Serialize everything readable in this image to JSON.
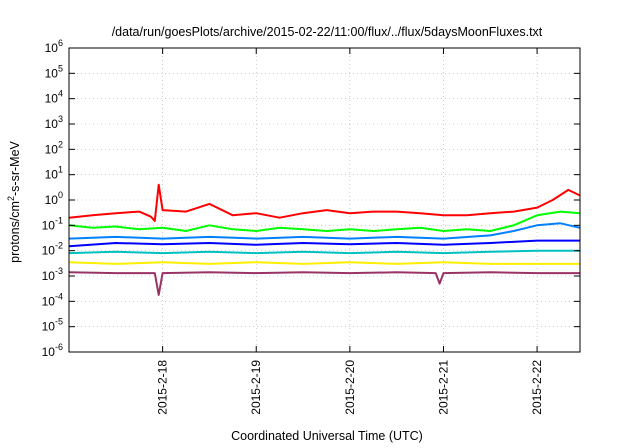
{
  "chart_data": {
    "type": "line",
    "title": "/data/run/goesPlots/archive/2015-02-22/11:00/flux/../flux/5daysMoonFluxes.txt",
    "xlabel": "Coordinated Universal Time (UTC)",
    "ylabel": {
      "prefix": "protons/cm",
      "sup": "2",
      "suffix": "-s-sr-MeV"
    },
    "x_scale": "time",
    "xlim": [
      "2015-02-17T00:00",
      "2015-02-22T11:00"
    ],
    "x_ticks": [
      {
        "at": "2015-02-18T00:00",
        "label": "2015-2-18"
      },
      {
        "at": "2015-02-19T00:00",
        "label": "2015-2-19"
      },
      {
        "at": "2015-02-20T00:00",
        "label": "2015-2-20"
      },
      {
        "at": "2015-02-21T00:00",
        "label": "2015-2-21"
      },
      {
        "at": "2015-02-22T00:00",
        "label": "2015-2-22"
      }
    ],
    "y_scale": "log",
    "ylim": [
      1e-06,
      1000000.0
    ],
    "y_ticks": [
      {
        "value": 1e-06,
        "base": "10",
        "exp": "-6"
      },
      {
        "value": 1e-05,
        "base": "10",
        "exp": "-5"
      },
      {
        "value": 0.0001,
        "base": "10",
        "exp": "-4"
      },
      {
        "value": 0.001,
        "base": "10",
        "exp": "-3"
      },
      {
        "value": 0.01,
        "base": "10",
        "exp": "-2"
      },
      {
        "value": 0.1,
        "base": "10",
        "exp": "-1"
      },
      {
        "value": 1,
        "base": "10",
        "exp": "0"
      },
      {
        "value": 10.0,
        "base": "10",
        "exp": "1"
      },
      {
        "value": 100.0,
        "base": "10",
        "exp": "2"
      },
      {
        "value": 1000.0,
        "base": "10",
        "exp": "3"
      },
      {
        "value": 10000.0,
        "base": "10",
        "exp": "4"
      },
      {
        "value": 100000.0,
        "base": "10",
        "exp": "5"
      },
      {
        "value": 1000000.0,
        "base": "10",
        "exp": "6"
      }
    ],
    "grid": true,
    "legend": "none",
    "series": [
      {
        "color": "#ff0000",
        "x": [
          "2015-02-17T00:00",
          "2015-02-17T06:00",
          "2015-02-17T12:00",
          "2015-02-17T18:00",
          "2015-02-17T21:00",
          "2015-02-17T22:00",
          "2015-02-17T23:00",
          "2015-02-18T00:00",
          "2015-02-18T06:00",
          "2015-02-18T12:00",
          "2015-02-18T18:00",
          "2015-02-19T00:00",
          "2015-02-19T06:00",
          "2015-02-19T12:00",
          "2015-02-19T18:00",
          "2015-02-20T00:00",
          "2015-02-20T06:00",
          "2015-02-20T12:00",
          "2015-02-20T18:00",
          "2015-02-21T00:00",
          "2015-02-21T06:00",
          "2015-02-21T12:00",
          "2015-02-21T18:00",
          "2015-02-22T00:00",
          "2015-02-22T04:00",
          "2015-02-22T08:00",
          "2015-02-22T11:00"
        ],
        "y": [
          0.2,
          0.25,
          0.3,
          0.35,
          0.22,
          0.15,
          4.0,
          0.4,
          0.35,
          0.7,
          0.25,
          0.3,
          0.2,
          0.3,
          0.4,
          0.3,
          0.35,
          0.35,
          0.3,
          0.25,
          0.25,
          0.3,
          0.35,
          0.5,
          1.0,
          2.5,
          1.5
        ]
      },
      {
        "color": "#00ff00",
        "x": [
          "2015-02-17T00:00",
          "2015-02-17T06:00",
          "2015-02-17T12:00",
          "2015-02-17T18:00",
          "2015-02-18T00:00",
          "2015-02-18T06:00",
          "2015-02-18T12:00",
          "2015-02-18T18:00",
          "2015-02-19T00:00",
          "2015-02-19T06:00",
          "2015-02-19T12:00",
          "2015-02-19T18:00",
          "2015-02-20T00:00",
          "2015-02-20T06:00",
          "2015-02-20T12:00",
          "2015-02-20T18:00",
          "2015-02-21T00:00",
          "2015-02-21T06:00",
          "2015-02-21T12:00",
          "2015-02-21T18:00",
          "2015-02-22T00:00",
          "2015-02-22T06:00",
          "2015-02-22T11:00"
        ],
        "y": [
          0.1,
          0.08,
          0.09,
          0.07,
          0.08,
          0.06,
          0.1,
          0.07,
          0.06,
          0.08,
          0.07,
          0.06,
          0.07,
          0.06,
          0.07,
          0.08,
          0.06,
          0.07,
          0.06,
          0.1,
          0.25,
          0.35,
          0.3
        ]
      },
      {
        "color": "#0080ff",
        "x": [
          "2015-02-17T00:00",
          "2015-02-17T12:00",
          "2015-02-18T00:00",
          "2015-02-18T12:00",
          "2015-02-19T00:00",
          "2015-02-19T12:00",
          "2015-02-20T00:00",
          "2015-02-20T12:00",
          "2015-02-21T00:00",
          "2015-02-21T12:00",
          "2015-02-21T18:00",
          "2015-02-22T00:00",
          "2015-02-22T06:00",
          "2015-02-22T11:00"
        ],
        "y": [
          0.03,
          0.035,
          0.03,
          0.035,
          0.03,
          0.035,
          0.03,
          0.035,
          0.03,
          0.04,
          0.06,
          0.1,
          0.12,
          0.08
        ]
      },
      {
        "color": "#0000ff",
        "x": [
          "2015-02-17T00:00",
          "2015-02-17T12:00",
          "2015-02-18T00:00",
          "2015-02-18T12:00",
          "2015-02-19T00:00",
          "2015-02-19T12:00",
          "2015-02-20T00:00",
          "2015-02-20T12:00",
          "2015-02-21T00:00",
          "2015-02-21T12:00",
          "2015-02-22T00:00",
          "2015-02-22T11:00"
        ],
        "y": [
          0.015,
          0.02,
          0.018,
          0.02,
          0.017,
          0.02,
          0.018,
          0.02,
          0.017,
          0.02,
          0.025,
          0.025
        ]
      },
      {
        "color": "#00c0c0",
        "x": [
          "2015-02-17T00:00",
          "2015-02-17T12:00",
          "2015-02-18T00:00",
          "2015-02-18T12:00",
          "2015-02-19T00:00",
          "2015-02-19T12:00",
          "2015-02-20T00:00",
          "2015-02-20T12:00",
          "2015-02-21T00:00",
          "2015-02-21T12:00",
          "2015-02-22T00:00",
          "2015-02-22T11:00"
        ],
        "y": [
          0.008,
          0.009,
          0.008,
          0.009,
          0.008,
          0.009,
          0.008,
          0.009,
          0.008,
          0.009,
          0.01,
          0.01
        ]
      },
      {
        "color": "#ffee00",
        "x": [
          "2015-02-17T00:00",
          "2015-02-17T12:00",
          "2015-02-18T00:00",
          "2015-02-18T12:00",
          "2015-02-19T00:00",
          "2015-02-19T12:00",
          "2015-02-20T00:00",
          "2015-02-20T12:00",
          "2015-02-21T00:00",
          "2015-02-21T12:00",
          "2015-02-22T00:00",
          "2015-02-22T11:00"
        ],
        "y": [
          0.0035,
          0.003,
          0.0035,
          0.003,
          0.0035,
          0.003,
          0.0035,
          0.003,
          0.0035,
          0.003,
          0.003,
          0.003
        ]
      },
      {
        "color": "#993366",
        "x": [
          "2015-02-17T00:00",
          "2015-02-17T12:00",
          "2015-02-17T22:00",
          "2015-02-17T23:00",
          "2015-02-18T00:00",
          "2015-02-18T12:00",
          "2015-02-19T00:00",
          "2015-02-19T12:00",
          "2015-02-20T00:00",
          "2015-02-20T12:00",
          "2015-02-20T22:00",
          "2015-02-20T23:00",
          "2015-02-21T00:00",
          "2015-02-21T12:00",
          "2015-02-22T00:00",
          "2015-02-22T11:00"
        ],
        "y": [
          0.0014,
          0.0013,
          0.0013,
          0.00018,
          0.0013,
          0.0014,
          0.0013,
          0.0014,
          0.0013,
          0.0014,
          0.0013,
          0.0005,
          0.0013,
          0.0014,
          0.0013,
          0.0013
        ]
      }
    ]
  }
}
